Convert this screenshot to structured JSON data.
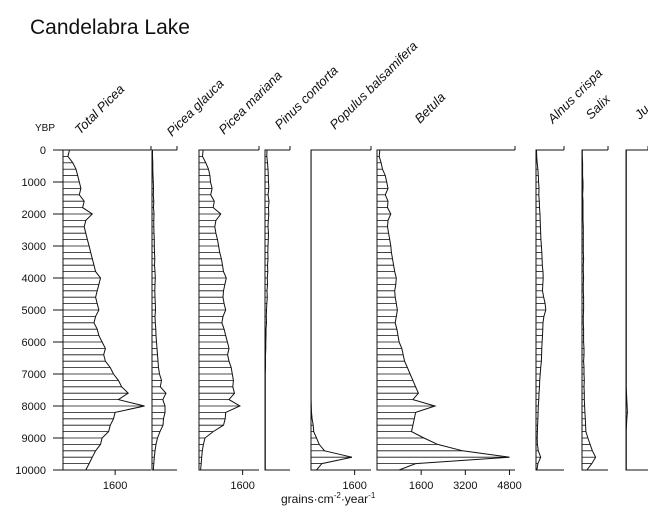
{
  "title": "Candelabra Lake",
  "chart_data": {
    "type": "area",
    "title": "Candelabra Lake",
    "y_axis": {
      "label": "YBP",
      "ticks": [
        0,
        1000,
        2000,
        3000,
        4000,
        5000,
        6000,
        7000,
        8000,
        9000,
        10000
      ],
      "tick_labels": [
        "0",
        "1000",
        "2000",
        "3000",
        "4000",
        "5000",
        "6000",
        "7000",
        "8000",
        "9000",
        "10000"
      ],
      "range": [
        0,
        10000
      ],
      "inverted": true
    },
    "xlabel": "grains·cm⁻²·year⁻¹",
    "depths": [
      0,
      200,
      400,
      600,
      800,
      1000,
      1200,
      1400,
      1600,
      1800,
      2000,
      2200,
      2400,
      2600,
      2800,
      3000,
      3200,
      3400,
      3600,
      3800,
      4000,
      4200,
      4400,
      4600,
      4800,
      5000,
      5200,
      5400,
      5600,
      5800,
      6000,
      6200,
      6400,
      6600,
      6800,
      7000,
      7200,
      7400,
      7600,
      7800,
      8000,
      8200,
      8400,
      8600,
      8800,
      9000,
      9200,
      9400,
      9600,
      9800,
      10000
    ],
    "series": [
      {
        "name": "Total Picea",
        "max": 2700,
        "tick_values": [
          1600
        ],
        "tick_labels": [
          "1600"
        ],
        "values": [
          200,
          150,
          300,
          400,
          450,
          500,
          550,
          500,
          650,
          600,
          900,
          700,
          650,
          700,
          750,
          800,
          850,
          900,
          950,
          1000,
          1150,
          1100,
          1050,
          1000,
          1050,
          1100,
          1000,
          950,
          1050,
          1100,
          1200,
          1300,
          1250,
          1300,
          1450,
          1550,
          1700,
          1800,
          2000,
          1700,
          2500,
          1600,
          1550,
          1450,
          1400,
          1200,
          1150,
          1000,
          900,
          800,
          700
        ]
      },
      {
        "name": "Picea glauca",
        "max": 1000,
        "tick_values": [],
        "tick_labels": [],
        "values": [
          20,
          20,
          30,
          30,
          40,
          50,
          60,
          50,
          70,
          60,
          80,
          70,
          70,
          80,
          90,
          90,
          100,
          110,
          100,
          120,
          130,
          120,
          110,
          120,
          130,
          140,
          120,
          130,
          150,
          160,
          180,
          200,
          220,
          240,
          260,
          300,
          380,
          330,
          560,
          430,
          520,
          520,
          460,
          440,
          320,
          220,
          160,
          120,
          90,
          70,
          50
        ]
      },
      {
        "name": "Picea mariana",
        "max": 2200,
        "tick_values": [
          1600
        ],
        "tick_labels": [
          "1600"
        ],
        "values": [
          150,
          130,
          250,
          350,
          400,
          420,
          480,
          430,
          560,
          520,
          800,
          620,
          580,
          620,
          680,
          720,
          760,
          820,
          860,
          900,
          1000,
          950,
          900,
          880,
          920,
          980,
          880,
          840,
          920,
          980,
          1040,
          1100,
          1050,
          1100,
          1180,
          1220,
          1260,
          1240,
          1300,
          1100,
          1500,
          980,
          960,
          900,
          520,
          220,
          160,
          120,
          100,
          80,
          60
        ]
      },
      {
        "name": "Pinus contorta",
        "max": 1000,
        "tick_values": [],
        "tick_labels": [],
        "values": [
          80,
          70,
          100,
          120,
          130,
          140,
          150,
          120,
          160,
          140,
          150,
          130,
          120,
          140,
          130,
          120,
          110,
          120,
          100,
          110,
          90,
          100,
          80,
          90,
          70,
          60,
          50,
          60,
          40,
          40,
          30,
          30,
          20,
          20,
          20,
          10,
          10,
          10,
          10,
          10,
          10,
          10,
          10,
          10,
          10,
          10,
          10,
          10,
          10,
          10,
          10
        ]
      },
      {
        "name": "Populus balsamifera",
        "max": 2200,
        "tick_values": [
          1600
        ],
        "tick_labels": [
          "1600"
        ],
        "values": [
          5,
          5,
          5,
          5,
          5,
          5,
          5,
          5,
          5,
          5,
          5,
          5,
          5,
          5,
          5,
          5,
          5,
          5,
          5,
          5,
          5,
          5,
          5,
          5,
          5,
          5,
          5,
          5,
          5,
          5,
          5,
          5,
          5,
          5,
          5,
          5,
          5,
          5,
          5,
          5,
          10,
          20,
          40,
          80,
          100,
          200,
          300,
          500,
          1500,
          400,
          200
        ]
      },
      {
        "name": "Betula",
        "max": 5000,
        "tick_values": [
          1600,
          3200,
          4800
        ],
        "tick_labels": [
          "1600",
          "3200",
          "4800"
        ],
        "values": [
          100,
          80,
          150,
          200,
          300,
          350,
          400,
          300,
          400,
          380,
          500,
          400,
          380,
          420,
          460,
          500,
          520,
          560,
          600,
          640,
          700,
          680,
          640,
          660,
          700,
          740,
          700,
          660,
          720,
          760,
          800,
          900,
          950,
          1000,
          1100,
          1200,
          1300,
          1400,
          1500,
          1300,
          2100,
          1400,
          1350,
          1300,
          1250,
          1700,
          2200,
          3100,
          4800,
          1400,
          800
        ]
      },
      {
        "name": "Alnus crispa",
        "max": 1200,
        "tick_values": [],
        "tick_labels": [],
        "values": [
          20,
          30,
          50,
          80,
          100,
          110,
          130,
          120,
          140,
          150,
          170,
          180,
          190,
          200,
          210,
          230,
          250,
          260,
          270,
          300,
          310,
          290,
          280,
          330,
          390,
          420,
          340,
          300,
          290,
          280,
          260,
          250,
          240,
          230,
          200,
          180,
          160,
          150,
          130,
          120,
          100,
          90,
          80,
          70,
          60,
          50,
          60,
          100,
          200,
          80,
          40
        ]
      },
      {
        "name": "Salix",
        "max": 800,
        "tick_values": [],
        "tick_labels": [],
        "values": [
          10,
          10,
          20,
          20,
          20,
          30,
          30,
          20,
          30,
          30,
          30,
          30,
          40,
          40,
          40,
          40,
          40,
          50,
          40,
          40,
          50,
          40,
          40,
          50,
          50,
          50,
          40,
          40,
          50,
          50,
          50,
          60,
          60,
          50,
          60,
          60,
          70,
          60,
          70,
          70,
          80,
          90,
          100,
          110,
          120,
          180,
          250,
          320,
          420,
          300,
          150
        ]
      },
      {
        "name": "Ju",
        "max": 400,
        "tick_values": [],
        "tick_labels": [],
        "values": [
          5,
          5,
          5,
          5,
          5,
          5,
          5,
          5,
          5,
          5,
          5,
          5,
          5,
          5,
          5,
          5,
          5,
          5,
          5,
          5,
          5,
          5,
          5,
          5,
          5,
          5,
          5,
          5,
          5,
          5,
          5,
          5,
          5,
          5,
          5,
          5,
          5,
          5,
          10,
          15,
          20,
          25,
          15,
          10,
          5,
          5,
          5,
          5,
          5,
          5,
          5
        ]
      }
    ]
  }
}
